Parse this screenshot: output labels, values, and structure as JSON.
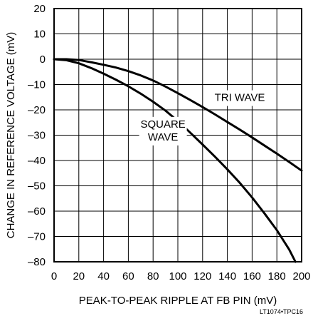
{
  "chart_data": {
    "type": "line",
    "xlabel": "PEAK-TO-PEAK RIPPLE AT FB PIN (mV)",
    "ylabel": "CHANGE IN REFERENCE VOLTAGE (mV)",
    "xlim": [
      0,
      200
    ],
    "ylim": [
      -80,
      20
    ],
    "x_ticks": [
      0,
      20,
      40,
      60,
      80,
      100,
      120,
      140,
      160,
      180,
      200
    ],
    "y_ticks": [
      20,
      10,
      0,
      -10,
      -20,
      -30,
      -40,
      -50,
      -60,
      -70,
      -80
    ],
    "x_tick_labels": [
      "0",
      "20",
      "40",
      "60",
      "80",
      "100",
      "120",
      "140",
      "160",
      "180",
      "200"
    ],
    "y_tick_labels": [
      "20",
      "10",
      "0",
      "–10",
      "–20",
      "–30",
      "–40",
      "–50",
      "–60",
      "–70",
      "–80"
    ],
    "grid": true,
    "figure_id": "LT1074•TPC16",
    "series": [
      {
        "name": "TRI WAVE",
        "x": [
          0,
          10,
          20,
          30,
          40,
          50,
          60,
          70,
          80,
          90,
          100,
          110,
          120,
          130,
          140,
          150,
          160,
          170,
          180,
          190,
          200
        ],
        "y": [
          0,
          0,
          -0.3,
          -1.2,
          -2.2,
          -3.3,
          -4.7,
          -6.4,
          -8.4,
          -10.8,
          -13.4,
          -16.1,
          -18.9,
          -21.8,
          -24.8,
          -27.8,
          -30.9,
          -34.1,
          -37.3,
          -40.6,
          -44
        ]
      },
      {
        "name": "SQUARE\nWAVE",
        "x": [
          0,
          10,
          20,
          30,
          40,
          50,
          60,
          70,
          80,
          90,
          100,
          110,
          120,
          130,
          140,
          150,
          160,
          170,
          180,
          190,
          195
        ],
        "y": [
          0,
          -0.4,
          -1.6,
          -3.5,
          -5.7,
          -8.1,
          -10.7,
          -13.6,
          -16.8,
          -20.3,
          -24.4,
          -29,
          -33.7,
          -38.5,
          -43.5,
          -48.8,
          -54.6,
          -60.9,
          -67.5,
          -75.2,
          -80
        ]
      }
    ],
    "series_labels": [
      {
        "lines": [
          "TRI WAVE"
        ],
        "x": 150,
        "y": -16.5
      },
      {
        "lines": [
          "SQUARE",
          "WAVE"
        ],
        "x": 88,
        "y": -27
      }
    ]
  }
}
